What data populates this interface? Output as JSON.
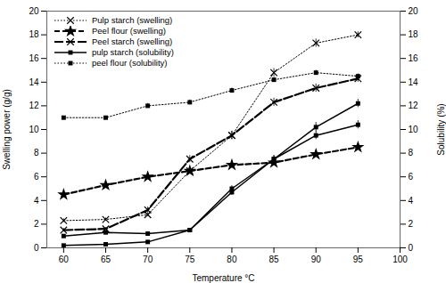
{
  "chart_data": {
    "type": "line",
    "x": [
      60,
      65,
      70,
      75,
      80,
      85,
      90,
      95
    ],
    "xlabel": "Temperature °C",
    "ylabel": "Swelling power (g/g)",
    "y2label": "Solubility (%)",
    "xlim": [
      58,
      100
    ],
    "xticks": [
      60,
      65,
      70,
      75,
      80,
      85,
      90,
      95,
      100
    ],
    "ylim": [
      0,
      20
    ],
    "yticks": [
      0,
      2,
      4,
      6,
      8,
      10,
      12,
      14,
      16,
      18,
      20
    ],
    "y2lim": [
      0,
      20
    ],
    "y2ticks": [
      0,
      2,
      4,
      6,
      8,
      10,
      12,
      14,
      16,
      18,
      20
    ],
    "grid": false,
    "legend": "upper left",
    "series": [
      {
        "name": "Pulp starch (swelling)",
        "color": "black",
        "marker": "x",
        "line_style": "dotted",
        "axis": "y",
        "values": [
          2.3,
          2.4,
          2.8,
          6.5,
          9.5,
          14.8,
          17.3,
          18.0
        ],
        "errors": [
          0.15,
          0.12,
          0.15,
          0.25,
          0.35,
          0.35,
          0.35,
          0.25
        ]
      },
      {
        "name": "Peel flour (swelling)",
        "color": "black",
        "marker": "star",
        "line_style": "dashed",
        "axis": "y",
        "values": [
          4.5,
          5.3,
          6.0,
          6.5,
          7.0,
          7.2,
          7.9,
          8.5
        ],
        "errors": [
          0.25,
          0.2,
          0.2,
          0.2,
          0.2,
          0.2,
          0.2,
          0.2
        ]
      },
      {
        "name": "Peel starch (swelling)",
        "color": "black",
        "marker": "x",
        "line_style": "long_dashed",
        "axis": "y",
        "values": [
          1.5,
          1.6,
          3.2,
          7.5,
          9.5,
          12.3,
          13.5,
          14.3
        ],
        "errors": [
          0.15,
          0.12,
          0.25,
          0.3,
          0.35,
          0.35,
          0.35,
          0.3
        ]
      },
      {
        "name": "pulp starch (solubility)",
        "color": "black",
        "marker": "square",
        "line_style": "solid",
        "axis": "y2",
        "values": [
          0.2,
          0.3,
          0.5,
          1.5,
          5.0,
          7.5,
          10.2,
          12.2
        ],
        "errors": [
          0.05,
          0.05,
          0.08,
          0.1,
          0.25,
          0.3,
          0.4,
          0.35
        ]
      },
      {
        "name": "peel flour (solubility)",
        "color": "black",
        "marker": "square",
        "line_style": "dotted",
        "axis": "y2",
        "values": [
          11.0,
          11.0,
          12.0,
          12.3,
          13.3,
          14.2,
          14.8,
          14.5
        ],
        "errors": [
          0.12,
          0.12,
          0.2,
          0.2,
          0.2,
          0.2,
          0.2,
          0.2
        ]
      },
      {
        "color": "black",
        "marker": "square",
        "line_style": "solid",
        "axis": "y2",
        "values": [
          1.0,
          1.3,
          1.2,
          1.5,
          4.7,
          7.5,
          9.5,
          10.4
        ],
        "errors": [
          0.1,
          0.1,
          0.1,
          0.1,
          0.25,
          0.3,
          0.35,
          0.35
        ]
      }
    ]
  }
}
